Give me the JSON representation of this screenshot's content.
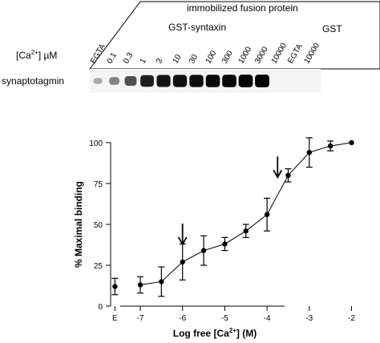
{
  "panel_top": {
    "group_label": "immobilized fusion protein",
    "sub_label_1": "GST-syntaxin",
    "sub_label_2": "GST",
    "conc_label_pre": "[Ca",
    "conc_label_sup": "2+",
    "conc_label_post": "] µM",
    "row_label": "synaptotagmin",
    "lanes": [
      {
        "label": "EGTA",
        "intensity": 0.15
      },
      {
        "label": "0.1",
        "intensity": 0.35
      },
      {
        "label": "0.3",
        "intensity": 0.6
      },
      {
        "label": "1",
        "intensity": 0.85
      },
      {
        "label": "3",
        "intensity": 0.9
      },
      {
        "label": "10",
        "intensity": 0.92
      },
      {
        "label": "30",
        "intensity": 0.93
      },
      {
        "label": "100",
        "intensity": 0.95
      },
      {
        "label": "300",
        "intensity": 0.96
      },
      {
        "label": "1000",
        "intensity": 0.97
      },
      {
        "label": "3000",
        "intensity": 0.98
      },
      {
        "label": "10000",
        "intensity": 0.0
      },
      {
        "label": "EGTA",
        "intensity": 0.0
      },
      {
        "label": "10000",
        "intensity": 0.0
      }
    ]
  },
  "chart_data": {
    "type": "line",
    "xlabel_pre": "Log  free  [Ca",
    "xlabel_sup": "2+",
    "xlabel_post": "]  (M)",
    "ylabel": "%  Maximal  binding",
    "xlim": [
      -7.5,
      -2
    ],
    "ylim": [
      0,
      100
    ],
    "x_ticks": [
      {
        "label": "E",
        "x": -7.6
      },
      {
        "label": "-7",
        "x": -7
      },
      {
        "label": "-6",
        "x": -6
      },
      {
        "label": "-5",
        "x": -5
      },
      {
        "label": "-4",
        "x": -4
      },
      {
        "label": "-3",
        "x": -3
      },
      {
        "label": "-2",
        "x": -2
      }
    ],
    "y_ticks": [
      0,
      25,
      50,
      75,
      100
    ],
    "egta_point": {
      "x": -7.6,
      "y": 12,
      "err": 5
    },
    "series": [
      {
        "x": [
          -7,
          -6.5,
          -6,
          -5.5,
          -5,
          -4.5,
          -4,
          -3.5,
          -3,
          -2.5,
          -2
        ],
        "y": [
          13,
          15,
          27,
          34,
          38,
          46,
          56,
          80,
          94,
          98,
          100
        ],
        "err": [
          5,
          9,
          11,
          9,
          4,
          4,
          10,
          4,
          9,
          3,
          0
        ]
      }
    ],
    "arrows": [
      -6,
      -3.75
    ]
  }
}
